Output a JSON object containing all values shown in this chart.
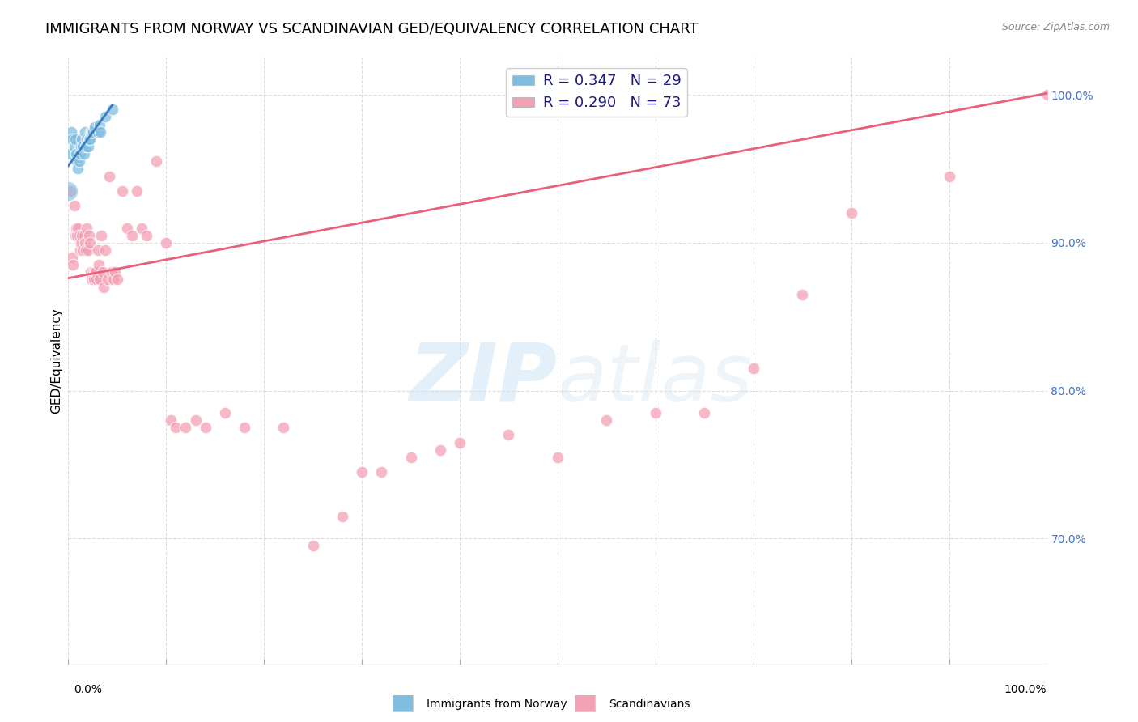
{
  "title": "IMMIGRANTS FROM NORWAY VS SCANDINAVIAN GED/EQUIVALENCY CORRELATION CHART",
  "source": "Source: ZipAtlas.com",
  "ylabel": "GED/Equivalency",
  "ytick_labels": [
    "100.0%",
    "90.0%",
    "80.0%",
    "70.0%"
  ],
  "ytick_values": [
    1.0,
    0.9,
    0.8,
    0.7
  ],
  "xlim": [
    0.0,
    1.0
  ],
  "ylim": [
    0.615,
    1.025
  ],
  "blue_color": "#7fbee0",
  "pink_color": "#f4a0b5",
  "blue_line_color": "#3a7bbf",
  "pink_line_color": "#e8607a",
  "watermark_zip": "ZIP",
  "watermark_atlas": "atlas",
  "legend_blue_text": "R = 0.347   N = 29",
  "legend_pink_text": "R = 0.290   N = 73",
  "background_color": "#ffffff",
  "grid_color": "#dddddd",
  "title_fontsize": 13,
  "axis_label_fontsize": 11,
  "tick_fontsize": 10,
  "legend_fontsize": 13,
  "blue_points_x": [
    0.002,
    0.003,
    0.004,
    0.006,
    0.007,
    0.008,
    0.009,
    0.01,
    0.011,
    0.012,
    0.013,
    0.014,
    0.015,
    0.016,
    0.017,
    0.018,
    0.019,
    0.02,
    0.021,
    0.022,
    0.023,
    0.024,
    0.025,
    0.027,
    0.03,
    0.032,
    0.033,
    0.038,
    0.045
  ],
  "blue_points_y": [
    0.96,
    0.975,
    0.97,
    0.965,
    0.97,
    0.96,
    0.955,
    0.95,
    0.955,
    0.96,
    0.965,
    0.97,
    0.965,
    0.96,
    0.975,
    0.965,
    0.97,
    0.965,
    0.97,
    0.97,
    0.975,
    0.975,
    0.975,
    0.978,
    0.975,
    0.98,
    0.975,
    0.985,
    0.99
  ],
  "pink_points_x": [
    0.002,
    0.004,
    0.005,
    0.006,
    0.007,
    0.008,
    0.009,
    0.01,
    0.011,
    0.012,
    0.013,
    0.014,
    0.015,
    0.016,
    0.017,
    0.018,
    0.019,
    0.02,
    0.021,
    0.022,
    0.023,
    0.024,
    0.025,
    0.026,
    0.027,
    0.028,
    0.029,
    0.03,
    0.031,
    0.032,
    0.034,
    0.035,
    0.036,
    0.038,
    0.04,
    0.042,
    0.044,
    0.046,
    0.048,
    0.05,
    0.055,
    0.06,
    0.065,
    0.07,
    0.075,
    0.08,
    0.09,
    0.1,
    0.105,
    0.11,
    0.12,
    0.13,
    0.14,
    0.16,
    0.18,
    0.22,
    0.25,
    0.28,
    0.3,
    0.32,
    0.35,
    0.38,
    0.4,
    0.45,
    0.5,
    0.55,
    0.6,
    0.65,
    0.7,
    0.75,
    0.8,
    0.9,
    1.0
  ],
  "pink_points_y": [
    0.935,
    0.89,
    0.885,
    0.925,
    0.905,
    0.91,
    0.905,
    0.91,
    0.905,
    0.895,
    0.9,
    0.905,
    0.895,
    0.905,
    0.9,
    0.895,
    0.91,
    0.895,
    0.905,
    0.9,
    0.88,
    0.875,
    0.88,
    0.875,
    0.88,
    0.88,
    0.875,
    0.895,
    0.885,
    0.875,
    0.905,
    0.88,
    0.87,
    0.895,
    0.875,
    0.945,
    0.88,
    0.875,
    0.88,
    0.875,
    0.935,
    0.91,
    0.905,
    0.935,
    0.91,
    0.905,
    0.955,
    0.9,
    0.78,
    0.775,
    0.775,
    0.78,
    0.775,
    0.785,
    0.775,
    0.775,
    0.695,
    0.715,
    0.745,
    0.745,
    0.755,
    0.76,
    0.765,
    0.77,
    0.755,
    0.78,
    0.785,
    0.785,
    0.815,
    0.865,
    0.92,
    0.945,
    1.0
  ],
  "blue_line_x": [
    0.0,
    0.045
  ],
  "blue_line_y": [
    0.952,
    0.993
  ],
  "pink_line_x": [
    0.0,
    1.0
  ],
  "pink_line_y": [
    0.876,
    1.001
  ],
  "extra_blue_large_x": [
    0.0
  ],
  "extra_blue_large_y": [
    0.935
  ],
  "extra_blue_large_s": 300
}
